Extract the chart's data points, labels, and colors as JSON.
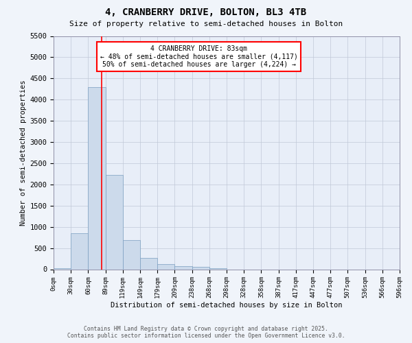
{
  "title": "4, CRANBERRY DRIVE, BOLTON, BL3 4TB",
  "subtitle": "Size of property relative to semi-detached houses in Bolton",
  "xlabel": "Distribution of semi-detached houses by size in Bolton",
  "ylabel": "Number of semi-detached properties",
  "bar_color": "#ccdaeb",
  "bar_edge_color": "#7a9ec0",
  "background_color": "#e8eef8",
  "grid_color": "#c0c8d8",
  "bin_labels": [
    "0sqm",
    "30sqm",
    "60sqm",
    "89sqm",
    "119sqm",
    "149sqm",
    "179sqm",
    "209sqm",
    "238sqm",
    "268sqm",
    "298sqm",
    "328sqm",
    "358sqm",
    "387sqm",
    "417sqm",
    "447sqm",
    "477sqm",
    "507sqm",
    "536sqm",
    "566sqm",
    "596sqm"
  ],
  "bar_values": [
    30,
    850,
    4300,
    2230,
    680,
    260,
    120,
    80,
    60,
    30,
    0,
    0,
    0,
    0,
    0,
    0,
    0,
    0,
    0,
    0
  ],
  "ylim": [
    0,
    5500
  ],
  "yticks": [
    0,
    500,
    1000,
    1500,
    2000,
    2500,
    3000,
    3500,
    4000,
    4500,
    5000,
    5500
  ],
  "vline_x": 2.78,
  "annotation_text": "4 CRANBERRY DRIVE: 83sqm\n← 48% of semi-detached houses are smaller (4,117)\n50% of semi-detached houses are larger (4,224) →",
  "footer_line1": "Contains HM Land Registry data © Crown copyright and database right 2025.",
  "footer_line2": "Contains public sector information licensed under the Open Government Licence v3.0.",
  "fig_bg": "#f0f4fa"
}
